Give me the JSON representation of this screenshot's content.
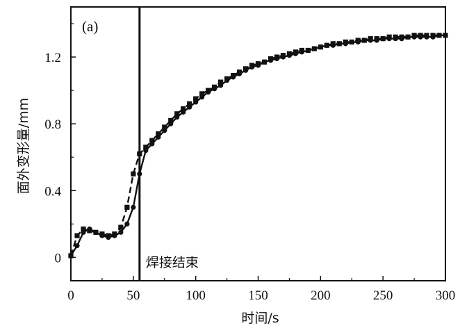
{
  "chart_data": {
    "type": "line",
    "panel_label": "(a)",
    "xlabel": "时间/s",
    "ylabel": "面外变形量/mm",
    "xlim": [
      0,
      300
    ],
    "ylim": [
      -0.14,
      1.5
    ],
    "xticks": [
      0,
      50,
      100,
      150,
      200,
      250,
      300
    ],
    "xtick_labels": [
      "0",
      "50",
      "100",
      "150",
      "200",
      "250",
      "300"
    ],
    "yticks": [
      0,
      0.4,
      0.8,
      1.2
    ],
    "ytick_labels": [
      "0",
      "0.4",
      "0.8",
      "1.2"
    ],
    "grid": false,
    "annotation": {
      "text": "焊接结束",
      "x": 55
    },
    "series": [
      {
        "style": "solid",
        "marker": "circle",
        "color": "#111111",
        "x": [
          0,
          5,
          10,
          15,
          20,
          25,
          30,
          35,
          40,
          45,
          50,
          55,
          60,
          65,
          70,
          75,
          80,
          85,
          90,
          95,
          100,
          105,
          110,
          115,
          120,
          125,
          130,
          135,
          140,
          145,
          150,
          155,
          160,
          165,
          170,
          175,
          180,
          185,
          190,
          195,
          200,
          205,
          210,
          215,
          220,
          225,
          230,
          235,
          240,
          245,
          250,
          255,
          260,
          265,
          270,
          275,
          280,
          285,
          290,
          295,
          300
        ],
        "y": [
          0.01,
          0.07,
          0.15,
          0.17,
          0.15,
          0.13,
          0.12,
          0.13,
          0.15,
          0.2,
          0.3,
          0.5,
          0.64,
          0.68,
          0.72,
          0.76,
          0.8,
          0.84,
          0.87,
          0.9,
          0.93,
          0.96,
          0.99,
          1.01,
          1.03,
          1.06,
          1.08,
          1.1,
          1.12,
          1.14,
          1.15,
          1.17,
          1.18,
          1.19,
          1.2,
          1.21,
          1.22,
          1.23,
          1.24,
          1.25,
          1.26,
          1.27,
          1.27,
          1.28,
          1.28,
          1.29,
          1.29,
          1.3,
          1.3,
          1.3,
          1.31,
          1.31,
          1.31,
          1.31,
          1.32,
          1.32,
          1.32,
          1.32,
          1.32,
          1.33,
          1.33
        ]
      },
      {
        "style": "dashed",
        "marker": "square",
        "color": "#111111",
        "x": [
          0,
          5,
          10,
          15,
          20,
          25,
          30,
          35,
          40,
          45,
          50,
          55,
          60,
          65,
          70,
          75,
          80,
          85,
          90,
          95,
          100,
          105,
          110,
          115,
          120,
          125,
          130,
          135,
          140,
          145,
          150,
          155,
          160,
          165,
          170,
          175,
          180,
          185,
          190,
          195,
          200,
          205,
          210,
          215,
          220,
          225,
          230,
          235,
          240,
          245,
          250,
          255,
          260,
          265,
          270,
          275,
          280,
          285,
          290,
          295,
          300
        ],
        "y": [
          0.01,
          0.13,
          0.17,
          0.16,
          0.15,
          0.14,
          0.13,
          0.14,
          0.18,
          0.3,
          0.5,
          0.62,
          0.66,
          0.7,
          0.74,
          0.78,
          0.82,
          0.86,
          0.89,
          0.92,
          0.95,
          0.98,
          1.0,
          1.02,
          1.05,
          1.07,
          1.09,
          1.11,
          1.13,
          1.15,
          1.16,
          1.17,
          1.19,
          1.2,
          1.21,
          1.22,
          1.23,
          1.24,
          1.24,
          1.25,
          1.26,
          1.27,
          1.28,
          1.28,
          1.29,
          1.29,
          1.3,
          1.3,
          1.31,
          1.31,
          1.31,
          1.32,
          1.32,
          1.32,
          1.32,
          1.33,
          1.33,
          1.33,
          1.33,
          1.33,
          1.33
        ]
      }
    ]
  }
}
